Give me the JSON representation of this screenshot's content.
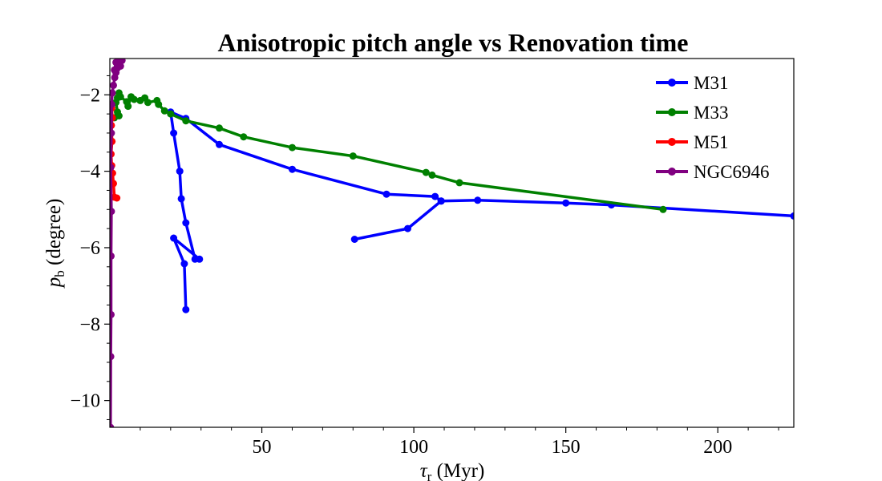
{
  "chart_data": {
    "type": "line",
    "title": "Anisotropic pitch angle vs Renovation time",
    "xlabel": {
      "main": "τ",
      "sub": "r",
      "rest": " (Myr)"
    },
    "ylabel": {
      "main": "p",
      "sub": "b",
      "rest": " (degree)"
    },
    "xlim": [
      0,
      225
    ],
    "ylim": [
      -10.7,
      -1.05
    ],
    "xticks": [
      50,
      100,
      150,
      200
    ],
    "yticks": [
      -2,
      -4,
      -6,
      -8,
      -10
    ],
    "xtick_labels": [
      "50",
      "100",
      "150",
      "200"
    ],
    "ytick_labels": [
      "−2",
      "−4",
      "−6",
      "−8",
      "−10"
    ],
    "legend_position": "top-right",
    "series": [
      {
        "name": "M31",
        "color": "#0000ff",
        "points": [
          [
            225,
            -5.17
          ],
          [
            165,
            -4.88
          ],
          [
            150,
            -4.83
          ],
          [
            121,
            -4.76
          ],
          [
            109,
            -4.78
          ],
          [
            107,
            -4.66
          ],
          [
            91,
            -4.6
          ],
          [
            60,
            -3.95
          ],
          [
            36,
            -3.3
          ],
          [
            25,
            -2.62
          ],
          [
            20,
            -2.45
          ],
          [
            21,
            -3.0
          ],
          [
            23,
            -4.0
          ],
          [
            23.5,
            -4.72
          ],
          [
            25,
            -5.35
          ],
          [
            28,
            -6.3
          ],
          [
            29.5,
            -6.3
          ],
          [
            21,
            -5.75
          ],
          [
            24.5,
            -6.42
          ],
          [
            25,
            -7.62
          ]
        ],
        "points_branch2": [
          [
            109,
            -4.78
          ],
          [
            98,
            -5.5
          ],
          [
            80.5,
            -5.78
          ]
        ]
      },
      {
        "name": "M33",
        "color": "#008000",
        "points": [
          [
            182,
            -5.0
          ],
          [
            115,
            -4.3
          ],
          [
            106,
            -4.1
          ],
          [
            104,
            -4.03
          ],
          [
            80,
            -3.6
          ],
          [
            60,
            -3.38
          ],
          [
            44,
            -3.1
          ],
          [
            36,
            -2.87
          ],
          [
            25,
            -2.68
          ],
          [
            20,
            -2.5
          ],
          [
            18,
            -2.42
          ],
          [
            16,
            -2.25
          ],
          [
            15.5,
            -2.15
          ],
          [
            12.5,
            -2.2
          ],
          [
            11.5,
            -2.08
          ],
          [
            10,
            -2.15
          ],
          [
            8,
            -2.12
          ],
          [
            7,
            -2.05
          ],
          [
            6,
            -2.3
          ],
          [
            5.5,
            -2.18
          ],
          [
            3.5,
            -2.05
          ],
          [
            3,
            -1.95
          ],
          [
            2.5,
            -2.08
          ],
          [
            2,
            -2.2
          ],
          [
            2.5,
            -2.45
          ],
          [
            3,
            -2.55
          ],
          [
            1.5,
            -2.6
          ]
        ]
      },
      {
        "name": "M51",
        "color": "#ff0000",
        "points": [
          [
            0.6,
            -2.35
          ],
          [
            0.8,
            -2.6
          ],
          [
            0.5,
            -2.8
          ],
          [
            0.7,
            -3.22
          ],
          [
            0.4,
            -3.55
          ],
          [
            0.6,
            -3.85
          ],
          [
            0.9,
            -4.05
          ],
          [
            1.2,
            -4.32
          ],
          [
            1.5,
            -4.68
          ],
          [
            2.3,
            -4.7
          ]
        ]
      },
      {
        "name": "NGC6946",
        "color": "#800080",
        "points": [
          [
            0.2,
            -10.7
          ],
          [
            0.3,
            -8.85
          ],
          [
            0.4,
            -7.75
          ],
          [
            0.4,
            -6.22
          ],
          [
            0.5,
            -5.05
          ],
          [
            0.3,
            -3.9
          ],
          [
            0.5,
            -3.0
          ],
          [
            0.6,
            -2.25
          ],
          [
            0.8,
            -1.95
          ],
          [
            1.2,
            -1.75
          ],
          [
            1.6,
            -1.55
          ],
          [
            2.0,
            -1.42
          ],
          [
            2.5,
            -1.3
          ],
          [
            3.5,
            -1.25
          ],
          [
            4.0,
            -1.1
          ],
          [
            3.0,
            -1.05
          ],
          [
            2.0,
            -1.15
          ],
          [
            1.5,
            -1.35
          ]
        ]
      }
    ]
  }
}
